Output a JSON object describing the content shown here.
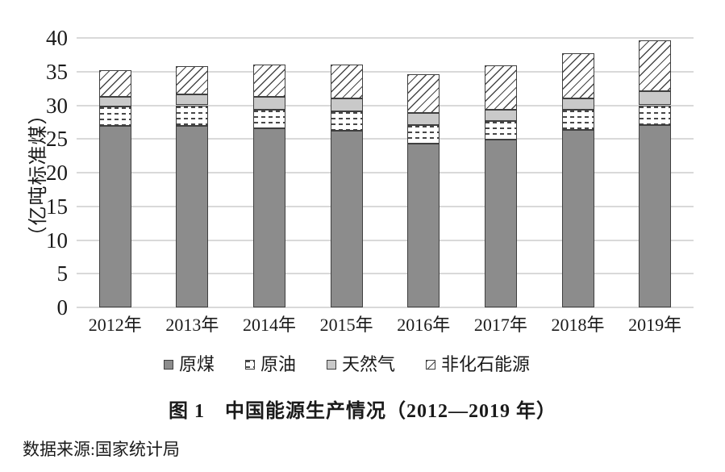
{
  "figure": {
    "caption": "图 1　中国能源生产情况（2012—2019 年）",
    "source_note": "数据来源:国家统计局"
  },
  "y_axis": {
    "title": "（亿吨标准煤）",
    "ticks": [
      0,
      5,
      10,
      15,
      20,
      25,
      30,
      35,
      40
    ],
    "max": 40
  },
  "x_axis": {
    "labels": [
      "2012年",
      "2013年",
      "2014年",
      "2015年",
      "2016年",
      "2017年",
      "2018年",
      "2019年"
    ]
  },
  "legend": {
    "items": [
      {
        "label": "原煤",
        "style": "coal"
      },
      {
        "label": "原油",
        "style": "oil"
      },
      {
        "label": "天然气",
        "style": "gas"
      },
      {
        "label": "非化石能源",
        "style": "nonfossil"
      }
    ]
  },
  "colors": {
    "coal_fill": "#8c8c8c",
    "gas_fill": "#c9c9c9",
    "pattern_line": "#474747",
    "segment_border": "#3f3f3f",
    "gridline": "#d9d9d9",
    "text": "#1a1a1a",
    "background": "#ffffff"
  },
  "chart_data": {
    "type": "bar",
    "stacked": true,
    "title": "图 1　中国能源生产情况（2012—2019 年）",
    "ylabel": "（亿吨标准煤）",
    "xlabel": "",
    "ylim": [
      0,
      40
    ],
    "grid": true,
    "legend_position": "bottom",
    "categories": [
      "2012年",
      "2013年",
      "2014年",
      "2015年",
      "2016年",
      "2017年",
      "2018年",
      "2019年"
    ],
    "series": [
      {
        "name": "原煤",
        "style": "coal",
        "values": [
          26.9,
          27.0,
          26.6,
          26.2,
          24.3,
          24.9,
          26.4,
          27.1
        ]
      },
      {
        "name": "原油",
        "style": "oil",
        "values": [
          2.9,
          3.0,
          2.8,
          2.9,
          2.8,
          2.8,
          2.9,
          2.9
        ]
      },
      {
        "name": "天然气",
        "style": "gas",
        "values": [
          1.5,
          1.6,
          1.9,
          1.9,
          1.8,
          1.6,
          1.7,
          2.1
        ]
      },
      {
        "name": "非化石能源",
        "style": "nonfossil",
        "values": [
          3.9,
          4.2,
          4.8,
          5.0,
          5.7,
          6.6,
          6.7,
          7.6
        ]
      }
    ],
    "totals": [
      35.2,
      35.8,
      36.1,
      36.0,
      34.6,
      35.9,
      37.7,
      39.7
    ]
  }
}
